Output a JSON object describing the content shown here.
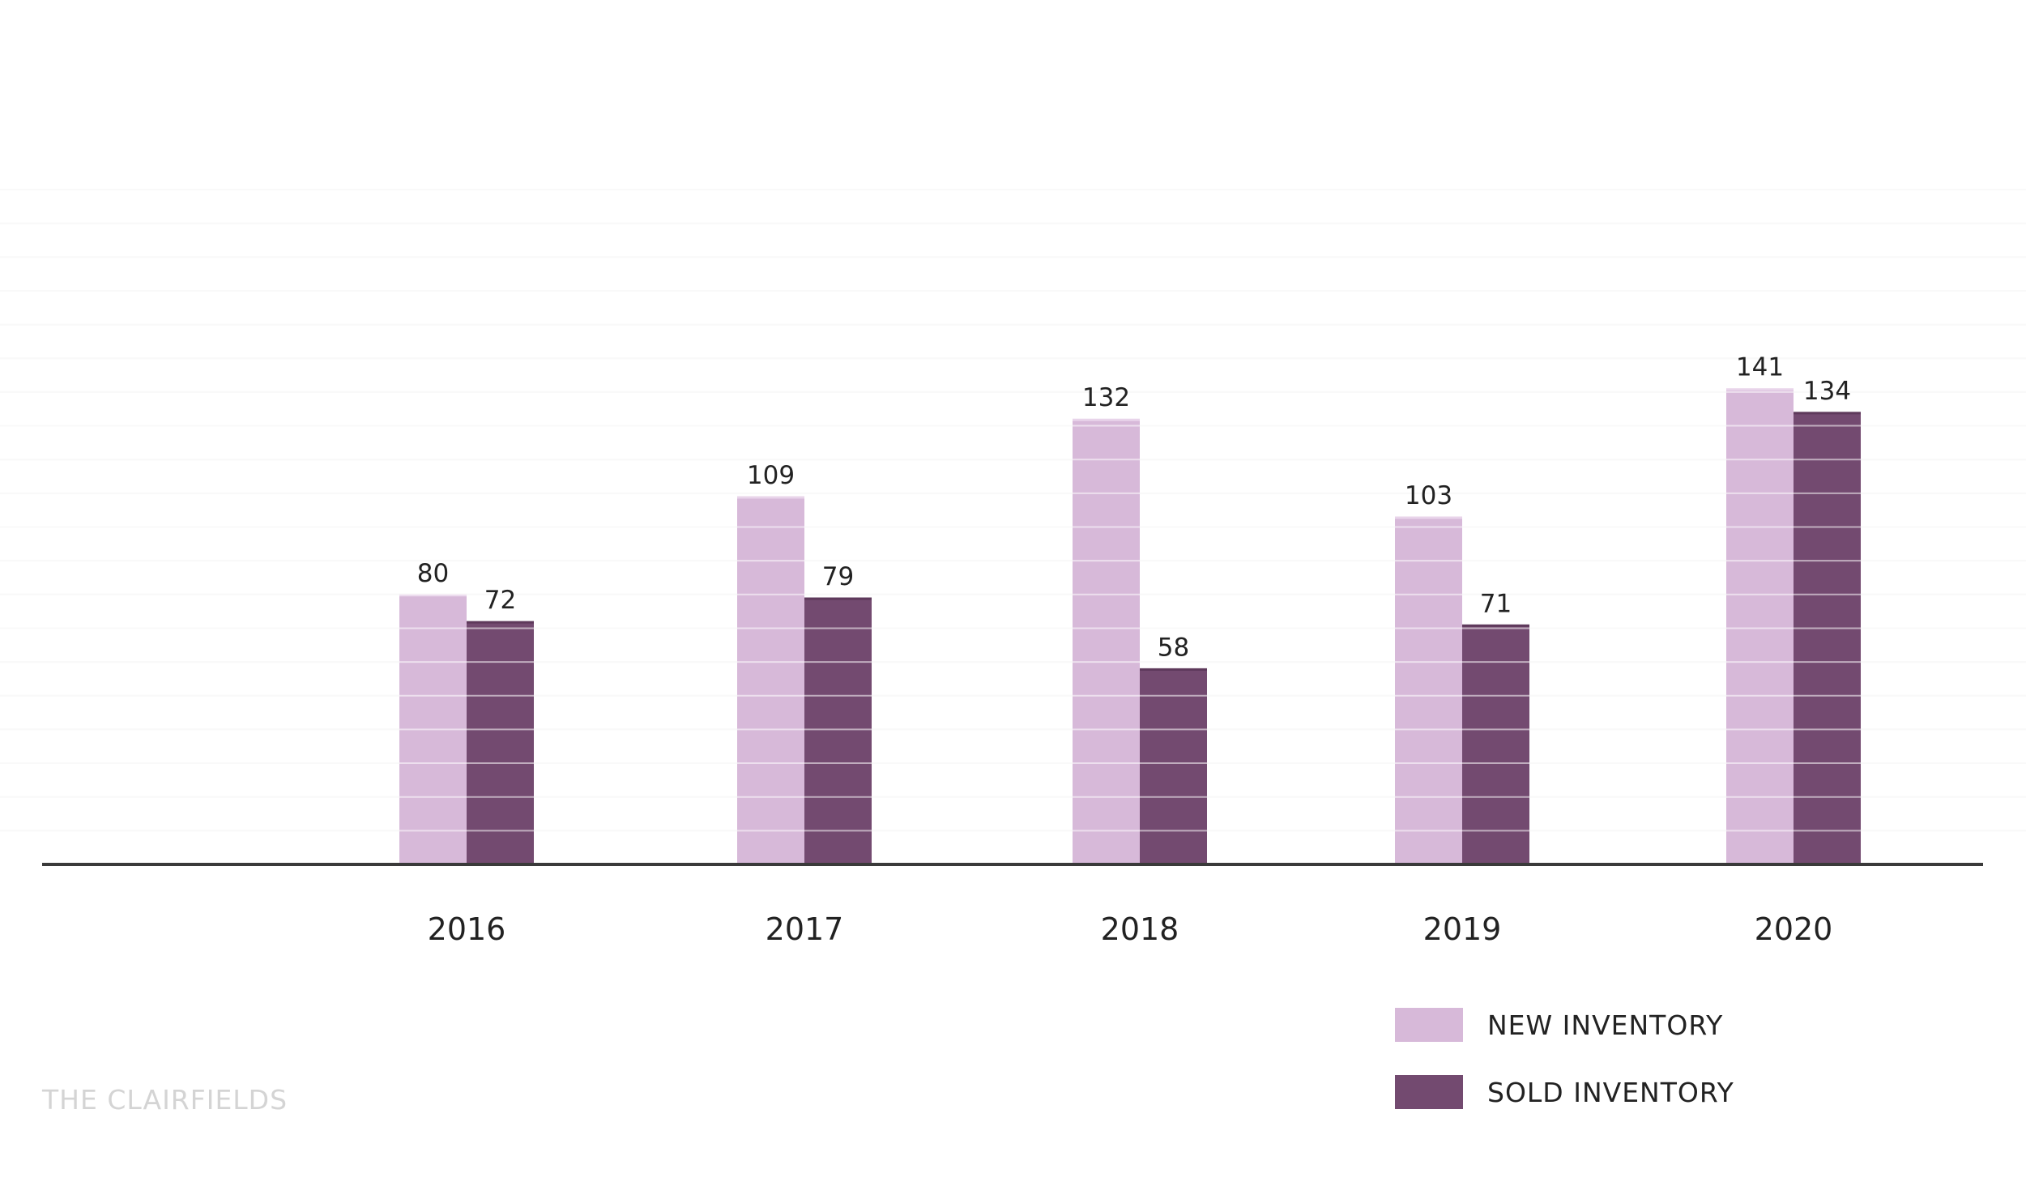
{
  "chart_data": {
    "type": "bar",
    "categories": [
      "2016",
      "2017",
      "2018",
      "2019",
      "2020"
    ],
    "series": [
      {
        "name": "NEW INVENTORY",
        "values": [
          80,
          109,
          132,
          103,
          141
        ],
        "color": "#d7b9d9"
      },
      {
        "name": "SOLD INVENTORY",
        "values": [
          72,
          79,
          58,
          71,
          134
        ],
        "color": "#734a70"
      }
    ],
    "ylim": [
      0,
      200
    ],
    "grid": true,
    "legend_position": "bottom-right"
  },
  "watermark": "THE CLAIRFIELDS"
}
